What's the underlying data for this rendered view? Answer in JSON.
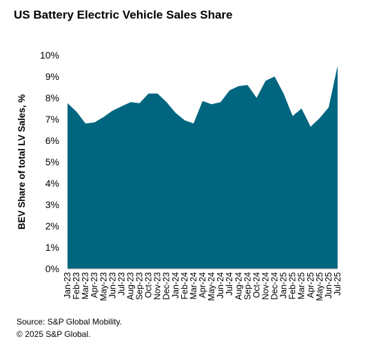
{
  "chart_data": {
    "type": "area",
    "title": "US Battery Electric Vehicle Sales Share",
    "ylabel": "BEV Share of total LV Sales, %",
    "xlabel": "",
    "ylim": [
      0,
      10
    ],
    "yticks": [
      "0%",
      "1%",
      "2%",
      "3%",
      "4%",
      "5%",
      "6%",
      "7%",
      "8%",
      "9%",
      "10%"
    ],
    "grid": false,
    "color": "#006680",
    "categories": [
      "Jan-23",
      "Feb-23",
      "Mar-23",
      "Apr-23",
      "May-23",
      "Jun-23",
      "Jul-23",
      "Aug-23",
      "Sep-23",
      "Oct-23",
      "Nov-23",
      "Dec-23",
      "Jan-24",
      "Feb-24",
      "Mar-24",
      "Apr-24",
      "May-24",
      "Jun-24",
      "Jul-24",
      "Aug-24",
      "Sep-24",
      "Oct-24",
      "Nov-24",
      "Dec-24",
      "Jan-25",
      "Feb-25",
      "Mar-25",
      "Apr-25",
      "May-25",
      "Jun-25",
      "Jul-25"
    ],
    "values": [
      7.75,
      7.35,
      6.8,
      6.85,
      7.1,
      7.4,
      7.6,
      7.8,
      7.75,
      8.2,
      8.2,
      7.8,
      7.3,
      6.95,
      6.8,
      7.85,
      7.7,
      7.8,
      8.35,
      8.55,
      8.6,
      8.0,
      8.8,
      9.0,
      8.2,
      7.15,
      7.5,
      6.65,
      7.05,
      7.55,
      9.5
    ]
  },
  "footer": {
    "source": "Source: S&P Global Mobility.",
    "copyright": "© 2025 S&P Global."
  }
}
